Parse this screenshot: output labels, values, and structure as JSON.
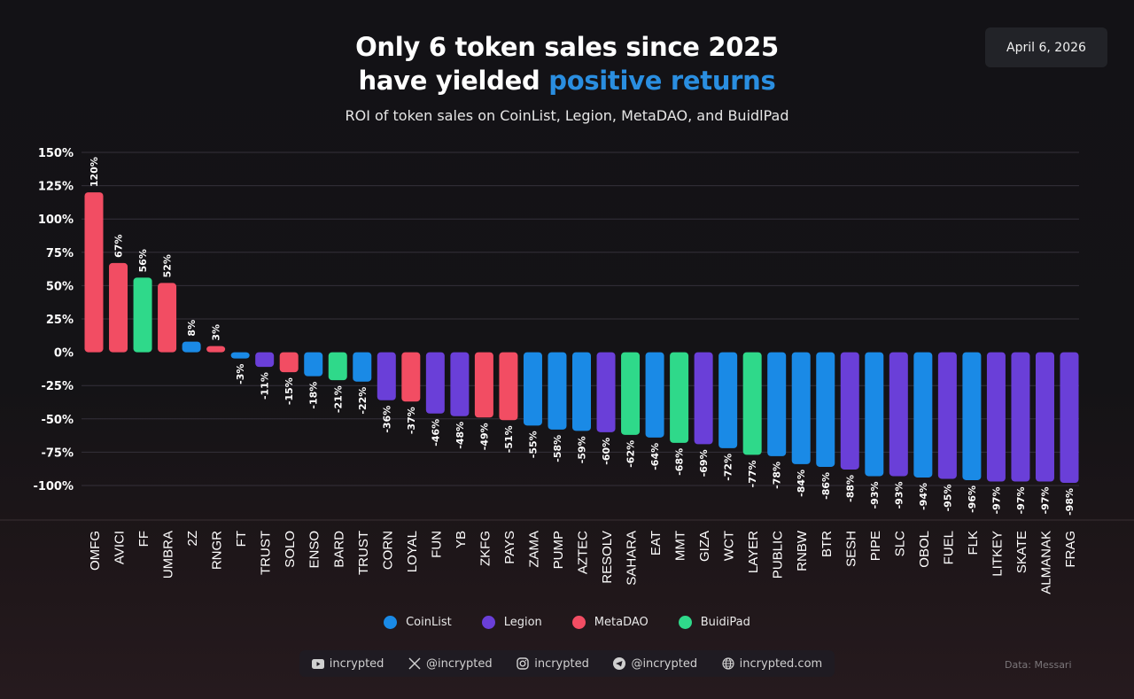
{
  "header": {
    "title_line1": "Only 6 token sales since 2025",
    "title_line2_prefix": "have yielded ",
    "title_line2_accent": "positive returns",
    "subtitle": "ROI of token sales on CoinList, Legion, MetaDAO, and BuidlPad",
    "date": "April 6, 2026"
  },
  "colors": {
    "CoinList": "#1a8ae6",
    "Legion": "#6a3fd8",
    "MetaDAO": "#f24d63",
    "BuidiPad": "#2fd98a",
    "accent": "#2a8ee0"
  },
  "chart_data": {
    "type": "bar",
    "title": "Only 6 token sales since 2025 have yielded positive returns",
    "subtitle": "ROI of token sales on CoinList, Legion, MetaDAO, and BuidlPad",
    "xlabel": "",
    "ylabel": "ROI",
    "ylim": [
      -100,
      150
    ],
    "yticks": [
      150,
      125,
      100,
      75,
      50,
      25,
      0,
      -25,
      -50,
      -75,
      -100
    ],
    "ytick_labels": [
      "150%",
      "125%",
      "100%",
      "75%",
      "50%",
      "25%",
      "0%",
      "-25%",
      "-50%",
      "-75%",
      "-100%"
    ],
    "grid": true,
    "legend_position": "bottom",
    "categories": [
      "OMFG",
      "AVICI",
      "FF",
      "UMBRA",
      "2Z",
      "RNGR",
      "FT",
      "TRUST",
      "SOLO",
      "ENSO",
      "BARD",
      "TRUST",
      "CORN",
      "LOYAL",
      "FUN",
      "YB",
      "ZKFG",
      "PAYS",
      "ZAMA",
      "PUMP",
      "AZTEC",
      "RESOLV",
      "SAHARA",
      "EAT",
      "MMT",
      "GIZA",
      "WCT",
      "LAYER",
      "PUBLIC",
      "RNBW",
      "BTR",
      "SESH",
      "PIPE",
      "SLC",
      "OBOL",
      "FUEL",
      "FLK",
      "LITKEY",
      "SKATE",
      "ALMANAK",
      "FRAG"
    ],
    "values": [
      120,
      67,
      56,
      52,
      8,
      3,
      -3,
      -11,
      -15,
      -18,
      -21,
      -22,
      -36,
      -37,
      -46,
      -48,
      -49,
      -51,
      -55,
      -58,
      -59,
      -60,
      -62,
      -64,
      -68,
      -69,
      -72,
      -77,
      -78,
      -84,
      -86,
      -88,
      -93,
      -93,
      -94,
      -95,
      -96,
      -97,
      -97,
      -97,
      -98
    ],
    "platforms": [
      "MetaDAO",
      "MetaDAO",
      "BuidiPad",
      "MetaDAO",
      "CoinList",
      "MetaDAO",
      "CoinList",
      "Legion",
      "MetaDAO",
      "CoinList",
      "BuidiPad",
      "CoinList",
      "Legion",
      "MetaDAO",
      "Legion",
      "Legion",
      "MetaDAO",
      "MetaDAO",
      "CoinList",
      "CoinList",
      "CoinList",
      "Legion",
      "BuidiPad",
      "CoinList",
      "BuidiPad",
      "Legion",
      "CoinList",
      "BuidiPad",
      "CoinList",
      "CoinList",
      "CoinList",
      "Legion",
      "CoinList",
      "Legion",
      "CoinList",
      "Legion",
      "CoinList",
      "Legion",
      "Legion",
      "Legion",
      "Legion"
    ],
    "data_labels": [
      "120%",
      "67%",
      "56%",
      "52%",
      "8%",
      "3%",
      "-3%",
      "-11%",
      "-15%",
      "-18%",
      "-21%",
      "-22%",
      "-36%",
      "-37%",
      "-46%",
      "-48%",
      "-49%",
      "-51%",
      "-55%",
      "-58%",
      "-59%",
      "-60%",
      "-62%",
      "-64%",
      "-68%",
      "-69%",
      "-72%",
      "-77%",
      "-78%",
      "-84%",
      "-86%",
      "-88%",
      "-93%",
      "-93%",
      "-94%",
      "-95%",
      "-96%",
      "-97%",
      "-97%",
      "-97%",
      "-98%"
    ],
    "legend": [
      "CoinList",
      "Legion",
      "MetaDAO",
      "BuidiPad"
    ]
  },
  "legend": [
    {
      "label": "CoinList",
      "key": "CoinList"
    },
    {
      "label": "Legion",
      "key": "Legion"
    },
    {
      "label": "MetaDAO",
      "key": "MetaDAO"
    },
    {
      "label": "BuidiPad",
      "key": "BuidiPad"
    }
  ],
  "socials": [
    {
      "icon": "youtube-icon",
      "label": "incrypted"
    },
    {
      "icon": "x-icon",
      "label": "@incrypted"
    },
    {
      "icon": "instagram-icon",
      "label": "incrypted"
    },
    {
      "icon": "telegram-icon",
      "label": "@incrypted"
    },
    {
      "icon": "globe-icon",
      "label": "incrypted.com"
    }
  ],
  "source": "Data: Messari"
}
